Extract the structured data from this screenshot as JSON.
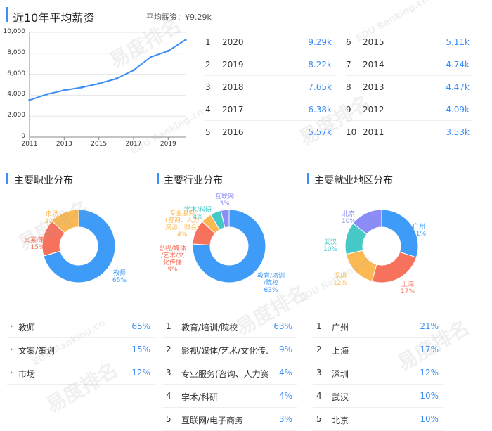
{
  "header": {
    "title": "近10年平均薪资",
    "avg_label": "平均薪资：¥9.29k"
  },
  "chart_data": {
    "type": "line",
    "x": [
      2011,
      2012,
      2013,
      2014,
      2015,
      2016,
      2017,
      2018,
      2019,
      2020
    ],
    "values": [
      3530,
      4090,
      4470,
      4740,
      5110,
      5570,
      6380,
      7650,
      8220,
      9290
    ],
    "y_ticks": [
      "10,000",
      "8,000",
      "6,000",
      "4,000",
      "2,000",
      "0"
    ],
    "x_ticks": [
      "2011",
      "2013",
      "2015",
      "2017",
      "2019"
    ],
    "ylim": [
      0,
      10000
    ],
    "color": "#3e8ef7"
  },
  "salary_left": [
    {
      "rank": "1",
      "year": "2020",
      "value": "9.29k"
    },
    {
      "rank": "2",
      "year": "2019",
      "value": "8.22k"
    },
    {
      "rank": "3",
      "year": "2018",
      "value": "7.65k"
    },
    {
      "rank": "4",
      "year": "2017",
      "value": "6.38k"
    },
    {
      "rank": "5",
      "year": "2016",
      "value": "5.57k"
    }
  ],
  "salary_right": [
    {
      "rank": "6",
      "year": "2015",
      "value": "5.11k"
    },
    {
      "rank": "7",
      "year": "2014",
      "value": "4.74k"
    },
    {
      "rank": "8",
      "year": "2013",
      "value": "4.47k"
    },
    {
      "rank": "9",
      "year": "2012",
      "value": "4.09k"
    },
    {
      "rank": "10",
      "year": "2011",
      "value": "3.53k"
    }
  ],
  "occupation": {
    "title": "主要职业分布",
    "slices": [
      {
        "name": "教师",
        "pct": 65,
        "color": "#3e9bf7"
      },
      {
        "name": "文案/策划",
        "pct": 15,
        "color": "#f6725d"
      },
      {
        "name": "市场",
        "pct": 12,
        "color": "#fbb954"
      }
    ],
    "labels": [
      {
        "text": "教师\n65%"
      },
      {
        "text": "文案/策划\n15%"
      },
      {
        "text": "市场\n12%"
      }
    ],
    "list": [
      {
        "name": "教师",
        "pct": "65%"
      },
      {
        "name": "文案/策划",
        "pct": "15%"
      },
      {
        "name": "市场",
        "pct": "12%"
      }
    ]
  },
  "industry": {
    "title": "主要行业分布",
    "slices": [
      {
        "name": "教育/培训/院校",
        "pct": 63,
        "color": "#3e9bf7"
      },
      {
        "name": "影视/媒体/艺术/文化传播",
        "pct": 9,
        "color": "#f6725d"
      },
      {
        "name": "专业服务(咨询、人力资源、财会)",
        "pct": 4,
        "color": "#fbb954"
      },
      {
        "name": "学术/科研",
        "pct": 4,
        "color": "#45c9c7"
      },
      {
        "name": "互联网/电子商务",
        "pct": 3,
        "color": "#8b8cf6"
      }
    ],
    "labels": [
      {
        "text": "教育/培训\n/院校\n63%"
      },
      {
        "text": "影视/媒体\n/艺术/文\n化传播\n9%"
      },
      {
        "text": "专业服务\n(咨询、人力\n资源、财会)\n4%"
      },
      {
        "text": "学术/科研\n4%"
      },
      {
        "text": "互联网\n3%"
      }
    ],
    "list": [
      {
        "idx": "1",
        "name": "教育/培训/院校",
        "pct": "63%"
      },
      {
        "idx": "2",
        "name": "影视/媒体/艺术/文化传...",
        "pct": "9%"
      },
      {
        "idx": "3",
        "name": "专业服务(咨询、人力资...",
        "pct": "4%"
      },
      {
        "idx": "4",
        "name": "学术/科研",
        "pct": "4%"
      },
      {
        "idx": "5",
        "name": "互联网/电子商务",
        "pct": "3%"
      }
    ]
  },
  "region": {
    "title": "主要就业地区分布",
    "slices": [
      {
        "name": "广州",
        "pct": 21,
        "color": "#3e9bf7"
      },
      {
        "name": "上海",
        "pct": 17,
        "color": "#f6725d"
      },
      {
        "name": "深圳",
        "pct": 12,
        "color": "#fbb954"
      },
      {
        "name": "武汉",
        "pct": 10,
        "color": "#45c9c7"
      },
      {
        "name": "北京",
        "pct": 10,
        "color": "#8b8cf6"
      }
    ],
    "labels": [
      {
        "text": "广州\n21%"
      },
      {
        "text": "上海\n17%"
      },
      {
        "text": "深圳\n12%"
      },
      {
        "text": "武汉\n10%"
      },
      {
        "text": "北京\n10%"
      }
    ],
    "list": [
      {
        "idx": "1",
        "name": "广州",
        "pct": "21%"
      },
      {
        "idx": "2",
        "name": "上海",
        "pct": "17%"
      },
      {
        "idx": "3",
        "name": "深圳",
        "pct": "12%"
      },
      {
        "idx": "4",
        "name": "武汉",
        "pct": "10%"
      },
      {
        "idx": "5",
        "name": "北京",
        "pct": "10%"
      }
    ]
  },
  "watermark": {
    "text": "易度排名",
    "sub": "EDU Ranking.cn"
  }
}
